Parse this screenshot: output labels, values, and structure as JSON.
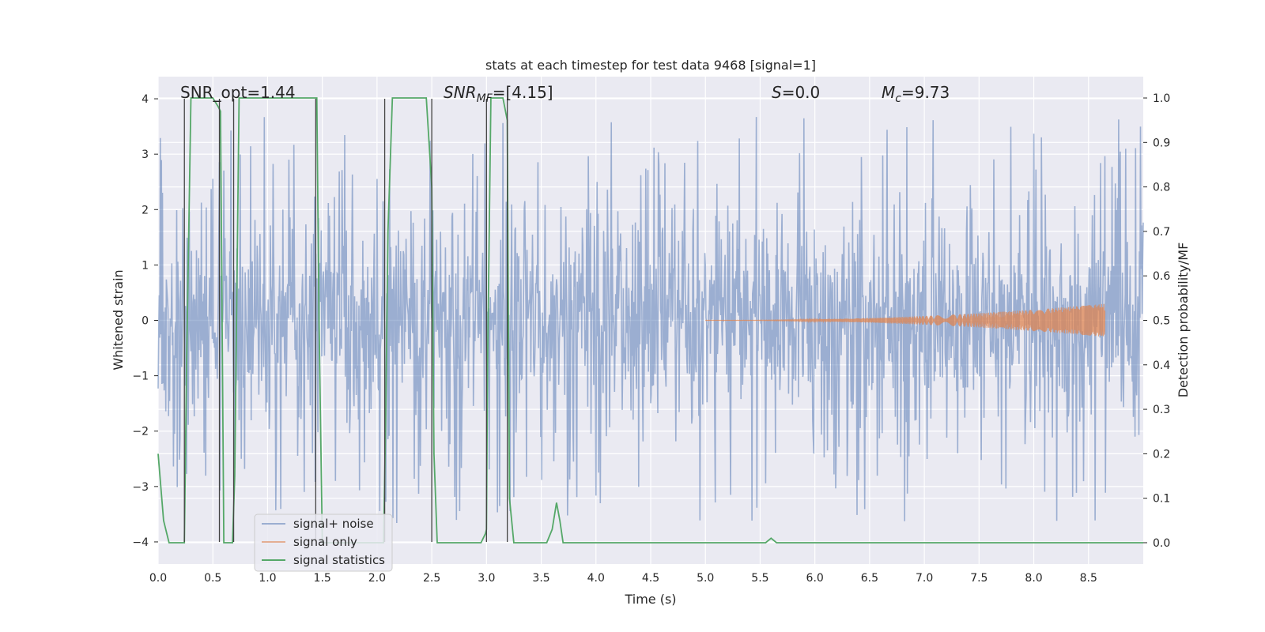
{
  "chart_data": {
    "type": "line",
    "title": "stats at each timestep for test data 9468 [signal=1]",
    "xlabel": "Time (s)",
    "ylabel_left": "Whitened strain",
    "ylabel_right": "Detection probability/MF",
    "xlim": [
      0.0,
      9.0
    ],
    "ylim_left": [
      -4.4,
      4.4
    ],
    "ylim_right": [
      -0.048,
      1.048
    ],
    "grid": true,
    "x_ticks": [
      "0.0",
      "0.5",
      "1.0",
      "1.5",
      "2.0",
      "2.5",
      "3.0",
      "3.5",
      "4.0",
      "4.5",
      "5.0",
      "5.5",
      "6.0",
      "6.5",
      "7.0",
      "7.5",
      "8.0",
      "8.5"
    ],
    "x_tick_values": [
      0.0,
      0.5,
      1.0,
      1.5,
      2.0,
      2.5,
      3.0,
      3.5,
      4.0,
      4.5,
      5.0,
      5.5,
      6.0,
      6.5,
      7.0,
      7.5,
      8.0,
      8.5
    ],
    "y_left_ticks": [
      "4",
      "3",
      "2",
      "1",
      "0",
      "−1",
      "−2",
      "−3",
      "−4"
    ],
    "y_left_tick_values": [
      4,
      3,
      2,
      1,
      0,
      -1,
      -2,
      -3,
      -4
    ],
    "y_right_ticks": [
      "1.0",
      "0.9",
      "0.8",
      "0.7",
      "0.6",
      "0.5",
      "0.4",
      "0.3",
      "0.2",
      "0.1",
      "0.0"
    ],
    "y_right_tick_values": [
      1.0,
      0.9,
      0.8,
      0.7,
      0.6,
      0.5,
      0.4,
      0.3,
      0.2,
      0.1,
      0.0
    ],
    "annotations": {
      "snr_opt": "SNR_opt=1.44",
      "snr_mf_prefix": "SNR",
      "snr_mf_sub": "MF",
      "snr_mf_value": "=[4.15]",
      "s_symbol": "S",
      "s_value": "=0.0",
      "mc_symbol": "M",
      "mc_sub": "c",
      "mc_value": "=9.73"
    },
    "series": [
      {
        "name": "signal+ noise",
        "color": "#4c72b0",
        "axis": "left",
        "style": "dense noise, amplitude about ±1.6 typical, peaks to ±3.8",
        "envelope": {
          "typical": 1.6,
          "peak": 3.8
        }
      },
      {
        "name": "signal only",
        "color": "#dd8452",
        "axis": "left",
        "style": "chirp, amplitude growing from 0 near t=5.0 to about 0.3 at t=8.65",
        "t_start": 5.0,
        "t_end": 8.65,
        "amp_end": 0.3
      },
      {
        "name": "signal statistics",
        "color": "#55a868",
        "axis": "right",
        "x": [
          0.0,
          0.05,
          0.1,
          0.2,
          0.24,
          0.26,
          0.3,
          0.35,
          0.5,
          0.55,
          0.57,
          0.6,
          0.62,
          0.68,
          0.7,
          0.74,
          0.76,
          1.0,
          1.4,
          1.45,
          1.47,
          1.5,
          1.52,
          1.6,
          2.0,
          2.06,
          2.08,
          2.1,
          2.14,
          2.2,
          2.45,
          2.5,
          2.52,
          2.55,
          2.6,
          2.8,
          2.95,
          2.99,
          3.0,
          3.01,
          3.04,
          3.1,
          3.15,
          3.19,
          3.2,
          3.21,
          3.25,
          3.35,
          3.5,
          3.55,
          3.6,
          3.64,
          3.67,
          3.7,
          3.75,
          4.0,
          5.0,
          5.5,
          5.55,
          5.6,
          5.65,
          5.7,
          5.75,
          6.0,
          7.0,
          8.0,
          8.5,
          9.0
        ],
        "y": [
          0.2,
          0.05,
          0.0,
          0.0,
          0.0,
          0.4,
          1.0,
          1.0,
          1.0,
          0.98,
          0.97,
          0.0,
          0.0,
          0.0,
          0.15,
          1.0,
          1.0,
          1.0,
          1.0,
          1.0,
          0.5,
          0.0,
          0.0,
          0.0,
          0.0,
          0.0,
          0.3,
          0.7,
          1.0,
          1.0,
          1.0,
          0.8,
          0.2,
          0.0,
          0.0,
          0.0,
          0.0,
          0.02,
          0.03,
          0.4,
          1.0,
          1.0,
          1.0,
          0.95,
          0.5,
          0.1,
          0.0,
          0.0,
          0.0,
          0.0,
          0.03,
          0.09,
          0.05,
          0.0,
          0.0,
          0.0,
          0.0,
          0.0,
          0.0,
          0.01,
          0.0,
          0.0,
          0.0,
          0.0,
          0.0,
          0.0,
          0.0,
          0.0
        ]
      }
    ],
    "markers": {
      "name": "black vertical lines",
      "color": "#444444",
      "x": [
        0.24,
        0.56,
        0.69,
        1.44,
        2.07,
        2.5,
        3.0,
        3.19
      ],
      "y_top": [
        4.0,
        4.0,
        4.0,
        4.0,
        4.0,
        4.0,
        4.0,
        4.0
      ],
      "y_bottom": [
        -4.0,
        -4.0,
        -4.0,
        -4.0,
        -4.0,
        -4.0,
        -4.0,
        -4.0
      ]
    },
    "legend": {
      "placement": "lower-left",
      "entries": [
        "signal+ noise",
        "signal only",
        "signal statistics"
      ]
    }
  }
}
